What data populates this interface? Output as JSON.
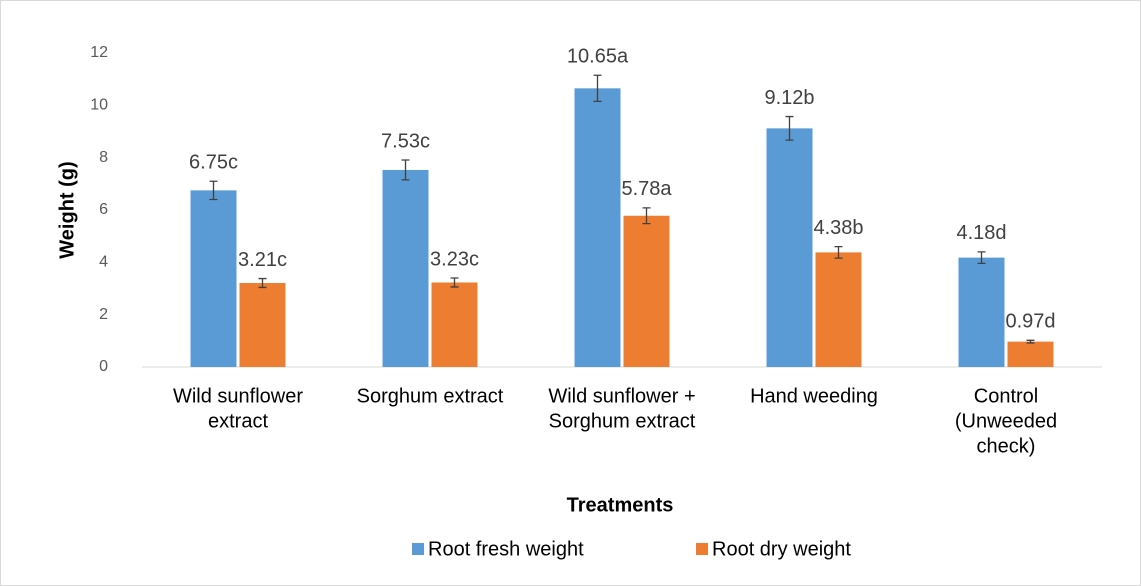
{
  "chart_data": {
    "type": "bar",
    "x_label": "Treatments",
    "y_label": "Weight (g)",
    "categories": [
      [
        "Wild sunflower",
        "extract"
      ],
      [
        "Sorghum extract"
      ],
      [
        "Wild sunflower +",
        "Sorghum extract"
      ],
      [
        "Hand weeding"
      ],
      [
        "Control",
        "(Unweeded",
        "check)"
      ]
    ],
    "series": [
      {
        "name": "Root fresh weight",
        "color": "#5b9bd5",
        "values": [
          6.75,
          7.53,
          10.65,
          9.12,
          4.18
        ],
        "errors": [
          0.35,
          0.38,
          0.5,
          0.45,
          0.22
        ],
        "value_labels": [
          "6.75c",
          "7.53c",
          "10.65a",
          "9.12b",
          "4.18d"
        ]
      },
      {
        "name": "Root dry weight",
        "color": "#ed7d31",
        "values": [
          3.21,
          3.23,
          5.78,
          4.38,
          0.97
        ],
        "errors": [
          0.17,
          0.17,
          0.3,
          0.22,
          0.05
        ],
        "value_labels": [
          "3.21c",
          "3.23c",
          "5.78a",
          "4.38b",
          "0.97d"
        ]
      }
    ],
    "ylim": [
      0,
      12
    ],
    "yticks": [
      0,
      2,
      4,
      6,
      8,
      10,
      12
    ],
    "grid": false,
    "legend": "bottom"
  }
}
